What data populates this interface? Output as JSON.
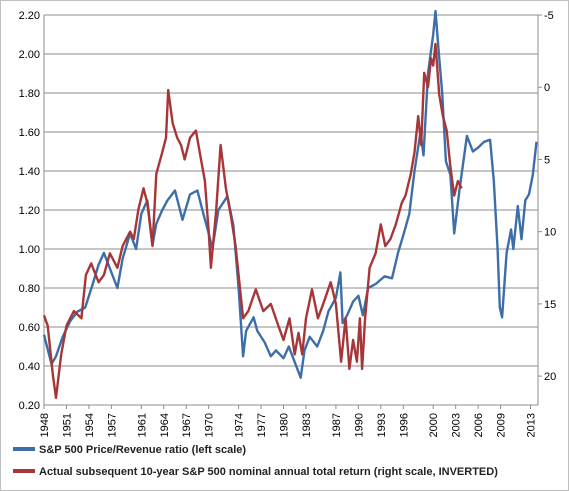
{
  "chart_data": {
    "type": "line",
    "title": "",
    "xlabel": "",
    "ylabel": "",
    "grid": true,
    "legend_position": "bottom",
    "x_range": [
      1948,
      2014
    ],
    "x_tick_labels": [
      "1948",
      "1951",
      "1954",
      "1957",
      "1961",
      "1964",
      "1967",
      "1970",
      "1974",
      "1977",
      "1980",
      "1983",
      "1987",
      "1990",
      "1993",
      "1996",
      "2000",
      "2003",
      "2006",
      "2009",
      "2013"
    ],
    "x_tick_years": [
      1948,
      1951,
      1954,
      1957,
      1961,
      1964,
      1967,
      1970,
      1974,
      1977,
      1980,
      1983,
      1987,
      1990,
      1993,
      1996,
      2000,
      2003,
      2006,
      2009,
      2013
    ],
    "y_left": {
      "range": [
        0.2,
        2.2
      ],
      "ticks": [
        "0.20",
        "0.40",
        "0.60",
        "0.80",
        "1.00",
        "1.20",
        "1.40",
        "1.60",
        "1.80",
        "2.00",
        "2.20"
      ],
      "tick_values": [
        0.2,
        0.4,
        0.6,
        0.8,
        1.0,
        1.2,
        1.4,
        1.6,
        1.8,
        2.0,
        2.2
      ]
    },
    "y_right": {
      "range": [
        -5,
        22
      ],
      "inverted": true,
      "ticks": [
        "-5",
        "0",
        "5",
        "10",
        "15",
        "20"
      ],
      "tick_values": [
        -5,
        0,
        5,
        10,
        15,
        20
      ]
    },
    "series": [
      {
        "name": "S&P 500 Price/Revenue ratio (left scale)",
        "axis": "left",
        "color": "#3d6ea8",
        "points": [
          [
            1948.0,
            0.56
          ],
          [
            1949.0,
            0.41
          ],
          [
            1949.6,
            0.45
          ],
          [
            1950.5,
            0.55
          ],
          [
            1951.5,
            0.63
          ],
          [
            1952.5,
            0.68
          ],
          [
            1953.5,
            0.7
          ],
          [
            1954.5,
            0.82
          ],
          [
            1955.3,
            0.92
          ],
          [
            1956.0,
            0.98
          ],
          [
            1957.0,
            0.88
          ],
          [
            1957.8,
            0.8
          ],
          [
            1958.5,
            0.95
          ],
          [
            1959.5,
            1.08
          ],
          [
            1960.3,
            1.0
          ],
          [
            1961.0,
            1.18
          ],
          [
            1961.8,
            1.25
          ],
          [
            1962.5,
            1.02
          ],
          [
            1963.0,
            1.13
          ],
          [
            1963.8,
            1.2
          ],
          [
            1964.5,
            1.25
          ],
          [
            1965.5,
            1.3
          ],
          [
            1966.5,
            1.15
          ],
          [
            1967.5,
            1.28
          ],
          [
            1968.5,
            1.3
          ],
          [
            1969.3,
            1.18
          ],
          [
            1970.0,
            1.08
          ],
          [
            1970.5,
            1.0
          ],
          [
            1971.3,
            1.2
          ],
          [
            1972.5,
            1.27
          ],
          [
            1973.3,
            1.12
          ],
          [
            1974.0,
            0.8
          ],
          [
            1974.6,
            0.45
          ],
          [
            1975.0,
            0.58
          ],
          [
            1976.0,
            0.65
          ],
          [
            1976.5,
            0.58
          ],
          [
            1977.5,
            0.52
          ],
          [
            1978.3,
            0.45
          ],
          [
            1979.0,
            0.48
          ],
          [
            1980.0,
            0.44
          ],
          [
            1980.7,
            0.5
          ],
          [
            1981.5,
            0.42
          ],
          [
            1982.3,
            0.34
          ],
          [
            1982.8,
            0.48
          ],
          [
            1983.5,
            0.55
          ],
          [
            1984.5,
            0.5
          ],
          [
            1985.3,
            0.58
          ],
          [
            1986.0,
            0.68
          ],
          [
            1987.0,
            0.75
          ],
          [
            1987.6,
            0.88
          ],
          [
            1987.9,
            0.62
          ],
          [
            1988.5,
            0.66
          ],
          [
            1989.3,
            0.73
          ],
          [
            1990.0,
            0.76
          ],
          [
            1990.6,
            0.66
          ],
          [
            1991.3,
            0.8
          ],
          [
            1992.3,
            0.82
          ],
          [
            1993.5,
            0.86
          ],
          [
            1994.5,
            0.85
          ],
          [
            1995.3,
            0.98
          ],
          [
            1996.0,
            1.07
          ],
          [
            1996.8,
            1.18
          ],
          [
            1997.5,
            1.4
          ],
          [
            1998.3,
            1.6
          ],
          [
            1998.7,
            1.48
          ],
          [
            1999.3,
            1.9
          ],
          [
            2000.0,
            2.1
          ],
          [
            2000.3,
            2.22
          ],
          [
            2000.8,
            1.98
          ],
          [
            2001.2,
            1.8
          ],
          [
            2001.7,
            1.45
          ],
          [
            2002.3,
            1.38
          ],
          [
            2002.8,
            1.08
          ],
          [
            2003.5,
            1.3
          ],
          [
            2004.5,
            1.58
          ],
          [
            2005.3,
            1.5
          ],
          [
            2006.0,
            1.52
          ],
          [
            2006.8,
            1.55
          ],
          [
            2007.6,
            1.56
          ],
          [
            2008.1,
            1.35
          ],
          [
            2008.6,
            1.0
          ],
          [
            2008.9,
            0.7
          ],
          [
            2009.2,
            0.65
          ],
          [
            2009.8,
            0.98
          ],
          [
            2010.4,
            1.1
          ],
          [
            2010.7,
            1.0
          ],
          [
            2011.3,
            1.22
          ],
          [
            2011.8,
            1.05
          ],
          [
            2012.3,
            1.25
          ],
          [
            2012.8,
            1.28
          ],
          [
            2013.3,
            1.38
          ],
          [
            2013.8,
            1.55
          ]
        ]
      },
      {
        "name": "Actual subsequent 10-year S&P 500 nominal annual total return (right scale, INVERTED)",
        "axis": "right",
        "color": "#a63638",
        "points": [
          [
            1948.0,
            15.8
          ],
          [
            1948.5,
            16.5
          ],
          [
            1949.2,
            20.0
          ],
          [
            1949.6,
            21.5
          ],
          [
            1950.3,
            18.5
          ],
          [
            1951.0,
            16.5
          ],
          [
            1952.0,
            15.5
          ],
          [
            1953.0,
            16.0
          ],
          [
            1953.6,
            13.0
          ],
          [
            1954.3,
            12.2
          ],
          [
            1955.3,
            13.5
          ],
          [
            1956.0,
            13.0
          ],
          [
            1956.8,
            11.5
          ],
          [
            1957.8,
            12.5
          ],
          [
            1958.5,
            11.0
          ],
          [
            1959.5,
            10.0
          ],
          [
            1960.0,
            10.5
          ],
          [
            1960.6,
            8.5
          ],
          [
            1961.3,
            7.0
          ],
          [
            1961.8,
            8.0
          ],
          [
            1962.5,
            11.0
          ],
          [
            1963.0,
            6.0
          ],
          [
            1963.8,
            4.5
          ],
          [
            1964.3,
            3.5
          ],
          [
            1964.6,
            0.2
          ],
          [
            1965.2,
            2.5
          ],
          [
            1965.8,
            3.5
          ],
          [
            1966.3,
            4.0
          ],
          [
            1966.8,
            5.0
          ],
          [
            1967.5,
            3.5
          ],
          [
            1968.3,
            3.0
          ],
          [
            1968.8,
            4.5
          ],
          [
            1969.5,
            6.5
          ],
          [
            1970.0,
            10.0
          ],
          [
            1970.3,
            12.5
          ],
          [
            1971.0,
            8.5
          ],
          [
            1971.6,
            4.0
          ],
          [
            1972.3,
            7.0
          ],
          [
            1973.0,
            9.0
          ],
          [
            1973.6,
            11.0
          ],
          [
            1974.0,
            13.0
          ],
          [
            1974.6,
            16.0
          ],
          [
            1975.3,
            15.5
          ],
          [
            1976.3,
            14.0
          ],
          [
            1977.3,
            15.5
          ],
          [
            1978.3,
            15.0
          ],
          [
            1979.3,
            16.5
          ],
          [
            1980.0,
            17.5
          ],
          [
            1980.8,
            16.0
          ],
          [
            1981.5,
            18.5
          ],
          [
            1982.0,
            17.0
          ],
          [
            1982.5,
            18.5
          ],
          [
            1983.0,
            16.0
          ],
          [
            1983.8,
            14.0
          ],
          [
            1984.6,
            16.0
          ],
          [
            1985.3,
            15.0
          ],
          [
            1986.3,
            13.5
          ],
          [
            1987.0,
            15.0
          ],
          [
            1987.7,
            19.0
          ],
          [
            1988.3,
            16.0
          ],
          [
            1988.8,
            19.5
          ],
          [
            1989.3,
            17.5
          ],
          [
            1989.8,
            19.0
          ],
          [
            1990.2,
            16.0
          ],
          [
            1990.5,
            19.5
          ],
          [
            1990.9,
            16.0
          ],
          [
            1991.5,
            12.5
          ],
          [
            1992.3,
            11.5
          ],
          [
            1993.0,
            9.5
          ],
          [
            1993.6,
            11.0
          ],
          [
            1994.3,
            10.5
          ],
          [
            1995.0,
            9.5
          ],
          [
            1995.8,
            8.0
          ],
          [
            1996.3,
            7.5
          ],
          [
            1997.0,
            6.0
          ],
          [
            1997.5,
            4.5
          ],
          [
            1998.0,
            2.0
          ],
          [
            1998.4,
            4.0
          ],
          [
            1998.8,
            -1.0
          ],
          [
            1999.3,
            0.0
          ],
          [
            1999.7,
            -2.0
          ],
          [
            2000.0,
            -1.5
          ],
          [
            2000.3,
            -3.0
          ],
          [
            2000.8,
            0.5
          ],
          [
            2001.3,
            2.0
          ],
          [
            2001.8,
            3.0
          ],
          [
            2002.3,
            5.5
          ],
          [
            2002.8,
            7.5
          ],
          [
            2003.3,
            6.5
          ],
          [
            2003.8,
            7.0
          ]
        ]
      }
    ]
  }
}
